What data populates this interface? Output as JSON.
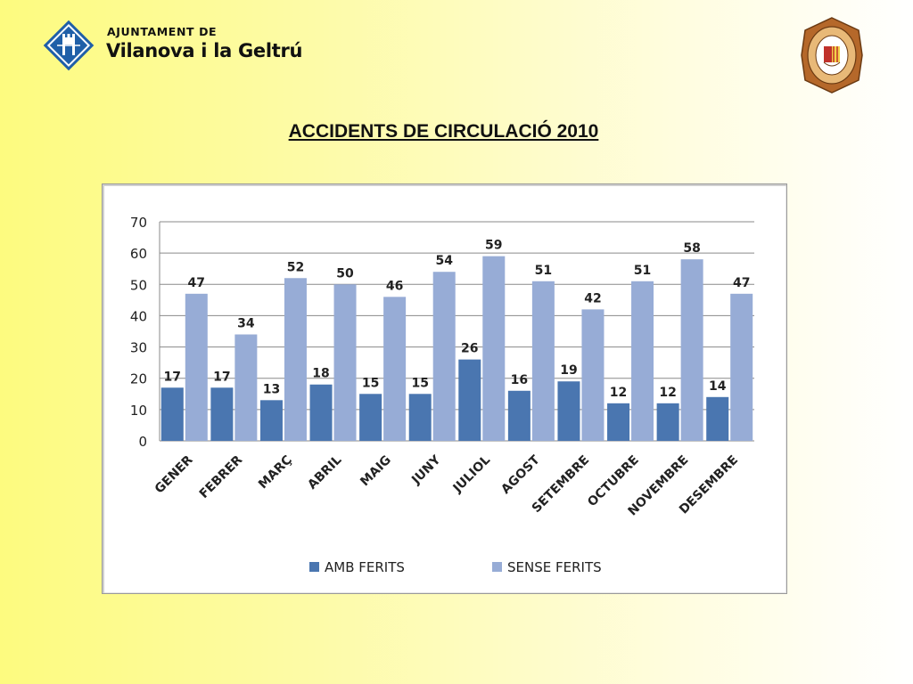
{
  "header": {
    "org_small": "AJUNTAMENT DE",
    "org_big": "Vilanova i la Geltrú",
    "title": "ACCIDENTS DE CIRCULACIÓ 2010"
  },
  "chart_data": {
    "type": "bar",
    "title": "",
    "xlabel": "",
    "ylabel": "",
    "ylim": [
      0,
      70
    ],
    "yticks": [
      0,
      10,
      20,
      30,
      40,
      50,
      60,
      70
    ],
    "grid": true,
    "legend": "bottom",
    "categories": [
      "GENER",
      "FEBRER",
      "MARÇ",
      "ABRIL",
      "MAIG",
      "JUNY",
      "JULIOL",
      "AGOST",
      "SETEMBRE",
      "OCTUBRE",
      "NOVEMBRE",
      "DESEMBRE"
    ],
    "series": [
      {
        "name": "AMB FERITS",
        "color": "#4a76b0",
        "values": [
          17,
          17,
          13,
          18,
          15,
          15,
          26,
          16,
          19,
          12,
          12,
          14
        ]
      },
      {
        "name": "SENSE FERITS",
        "color": "#97acd6",
        "values": [
          47,
          34,
          52,
          50,
          46,
          54,
          59,
          51,
          42,
          51,
          58,
          47
        ]
      }
    ]
  },
  "colors": {
    "grid": "#8a8a8a",
    "label_text": "#222222"
  }
}
